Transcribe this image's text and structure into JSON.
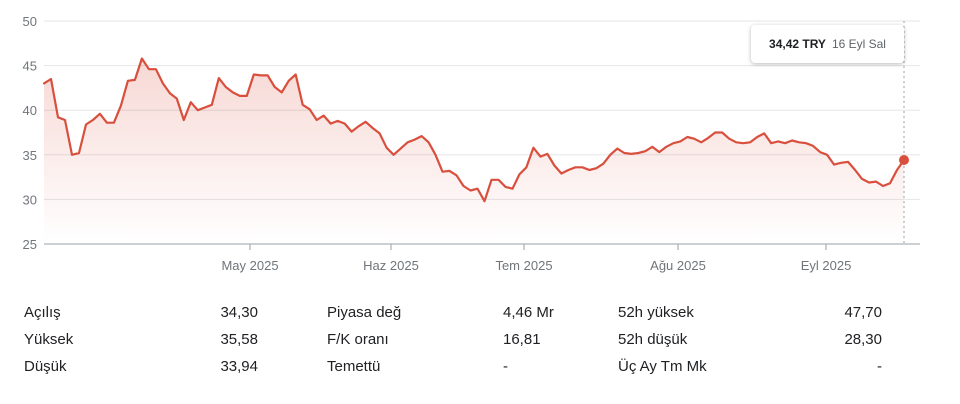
{
  "chart_data": {
    "type": "area",
    "title": "",
    "xlabel": "",
    "ylabel": "",
    "ylim": [
      25,
      50
    ],
    "yticks": [
      25,
      30,
      35,
      40,
      45,
      50
    ],
    "xtick_labels": [
      "May 2025",
      "Haz 2025",
      "Tem 2025",
      "Ağu 2025",
      "Eyl 2025"
    ],
    "grid": true,
    "line_color": "#d94f3d",
    "series": [
      {
        "values": [
          43.0,
          43.5,
          39.2,
          38.9,
          35.0,
          35.2,
          38.4,
          38.9,
          39.6,
          38.6,
          38.6,
          40.5,
          43.3,
          43.4,
          45.8,
          44.6,
          44.6,
          43.0,
          41.9,
          41.3,
          38.9,
          40.9,
          40.0,
          40.3,
          40.6,
          43.6,
          42.6,
          42.0,
          41.6,
          41.6,
          44.0,
          43.9,
          43.9,
          42.6,
          42.0,
          43.3,
          44.0,
          40.6,
          40.1,
          38.9,
          39.4,
          38.5,
          38.8,
          38.5,
          37.6,
          38.2,
          38.7,
          38.0,
          37.4,
          35.8,
          35.0,
          35.7,
          36.4,
          36.7,
          37.1,
          36.4,
          35.0,
          33.1,
          33.2,
          32.7,
          31.5,
          31.0,
          31.2,
          29.8,
          32.2,
          32.2,
          31.4,
          31.2,
          32.8,
          33.6,
          35.8,
          34.8,
          35.1,
          33.8,
          32.9,
          33.3,
          33.6,
          33.6,
          33.3,
          33.5,
          34.0,
          35.0,
          35.7,
          35.2,
          35.1,
          35.2,
          35.4,
          35.9,
          35.3,
          35.9,
          36.3,
          36.5,
          37.0,
          36.8,
          36.4,
          36.9,
          37.5,
          37.5,
          36.8,
          36.4,
          36.3,
          36.4,
          37.0,
          37.4,
          36.3,
          36.5,
          36.3,
          36.6,
          36.4,
          36.3,
          36.0,
          35.3,
          35.0,
          33.9,
          34.1,
          34.2,
          33.3,
          32.3,
          31.9,
          32.0,
          31.5,
          31.8,
          33.3,
          34.42
        ]
      }
    ]
  },
  "tooltip": {
    "price": "34,42 TRY",
    "date": "16 Eyl Sal"
  },
  "stats": [
    [
      {
        "label": "Açılış",
        "value": "34,30"
      },
      {
        "label": "Yüksek",
        "value": "35,58"
      },
      {
        "label": "Düşük",
        "value": "33,94"
      }
    ],
    [
      {
        "label": "Piyasa değ",
        "value": "4,46 Mr"
      },
      {
        "label": "F/K oranı",
        "value": "16,81"
      },
      {
        "label": "Temettü",
        "value": "-"
      }
    ],
    [
      {
        "label": "52h yüksek",
        "value": "47,70"
      },
      {
        "label": "52h düşük",
        "value": "28,30"
      },
      {
        "label": "Üç Ay Tm Mk",
        "value": "-"
      }
    ]
  ]
}
